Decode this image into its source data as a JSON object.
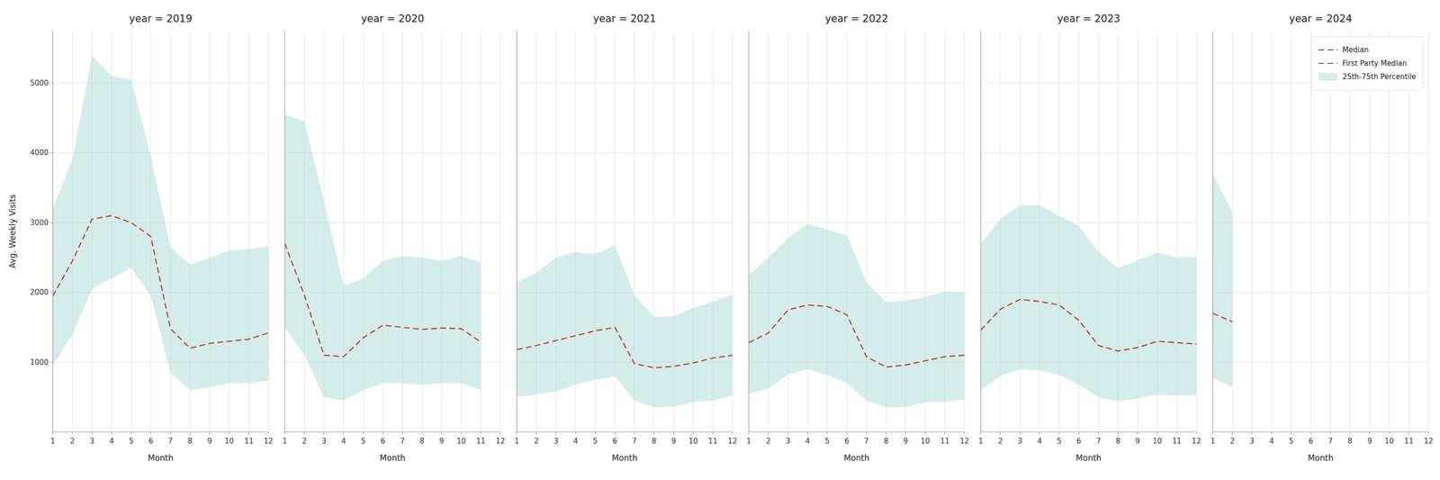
{
  "chart_data": [
    {
      "type": "line",
      "title": "year = 2019",
      "xlabel": "Month",
      "ylabel": "Avg. Weekly Visits",
      "x": [
        1,
        2,
        3,
        4,
        5,
        6,
        7,
        8,
        9,
        10,
        11,
        12
      ],
      "xlim": [
        1,
        12
      ],
      "xticks": [
        1,
        2,
        3,
        4,
        5,
        6,
        7,
        8,
        9,
        10,
        11,
        12
      ],
      "ylim": [
        0,
        5750
      ],
      "yticks": [
        1000,
        2000,
        3000,
        4000,
        5000
      ],
      "grid": true,
      "series": [
        {
          "name": "Median",
          "type": "line",
          "color": "#cc2222",
          "line_style": "dashed",
          "values": [
            1950,
            2450,
            3050,
            3100,
            3000,
            2800,
            1480,
            1200,
            1270,
            1300,
            1330,
            1420
          ]
        },
        {
          "name": "25th-75th Percentile",
          "type": "band",
          "color": "#aedfd8",
          "low": [
            950,
            1400,
            2050,
            2200,
            2350,
            1950,
            850,
            600,
            640,
            700,
            700,
            740
          ],
          "high": [
            3200,
            3900,
            5400,
            5100,
            5050,
            3950,
            2650,
            2400,
            2500,
            2600,
            2620,
            2660
          ]
        }
      ]
    },
    {
      "type": "line",
      "title": "year = 2020",
      "xlabel": "Month",
      "x": [
        1,
        2,
        3,
        4,
        5,
        6,
        7,
        8,
        9,
        10,
        11,
        12
      ],
      "xlim": [
        1,
        12
      ],
      "xticks": [
        1,
        2,
        3,
        4,
        5,
        6,
        7,
        8,
        9,
        10,
        11,
        12
      ],
      "ylim": [
        0,
        5750
      ],
      "yticks": [
        1000,
        2000,
        3000,
        4000,
        5000
      ],
      "grid": true,
      "tick_labels": "x",
      "series": [
        {
          "name": "Median",
          "type": "line",
          "color": "#cc2222",
          "line_style": "dashed",
          "values": [
            2700,
            1960,
            1100,
            1080,
            1350,
            1530,
            1500,
            1470,
            1490,
            1480,
            1290,
            null
          ]
        },
        {
          "name": "25th-75th Percentile",
          "type": "band",
          "color": "#aedfd8",
          "low": [
            1500,
            1100,
            500,
            450,
            600,
            700,
            700,
            680,
            700,
            700,
            600,
            null
          ],
          "high": [
            4550,
            4450,
            3300,
            2100,
            2200,
            2450,
            2520,
            2500,
            2450,
            2520,
            2430,
            null
          ]
        }
      ]
    },
    {
      "type": "line",
      "title": "year = 2021",
      "xlabel": "Month",
      "x": [
        1,
        2,
        3,
        4,
        5,
        6,
        7,
        8,
        9,
        10,
        11,
        12
      ],
      "xlim": [
        1,
        12
      ],
      "xticks": [
        1,
        2,
        3,
        4,
        5,
        6,
        7,
        8,
        9,
        10,
        11,
        12
      ],
      "ylim": [
        0,
        5750
      ],
      "yticks": [
        1000,
        2000,
        3000,
        4000,
        5000
      ],
      "grid": true,
      "tick_labels": "x",
      "series": [
        {
          "name": "Median",
          "type": "line",
          "color": "#cc2222",
          "line_style": "dashed",
          "values": [
            1180,
            1240,
            1310,
            1380,
            1450,
            1500,
            980,
            920,
            940,
            990,
            1060,
            1100
          ]
        },
        {
          "name": "25th-75th Percentile",
          "type": "band",
          "color": "#aedfd8",
          "low": [
            500,
            540,
            580,
            680,
            750,
            800,
            450,
            350,
            360,
            430,
            450,
            520
          ],
          "high": [
            2150,
            2280,
            2500,
            2580,
            2550,
            2680,
            1960,
            1650,
            1660,
            1780,
            1870,
            1970
          ]
        }
      ]
    },
    {
      "type": "line",
      "title": "year = 2022",
      "xlabel": "Month",
      "x": [
        1,
        2,
        3,
        4,
        5,
        6,
        7,
        8,
        9,
        10,
        11,
        12
      ],
      "xlim": [
        1,
        12
      ],
      "xticks": [
        1,
        2,
        3,
        4,
        5,
        6,
        7,
        8,
        9,
        10,
        11,
        12
      ],
      "ylim": [
        0,
        5750
      ],
      "yticks": [
        1000,
        2000,
        3000,
        4000,
        5000
      ],
      "grid": true,
      "tick_labels": "x",
      "series": [
        {
          "name": "Median",
          "type": "line",
          "color": "#cc2222",
          "line_style": "dashed",
          "values": [
            1280,
            1420,
            1750,
            1820,
            1800,
            1680,
            1080,
            930,
            960,
            1020,
            1080,
            1100
          ]
        },
        {
          "name": "25th-75th Percentile",
          "type": "band",
          "color": "#aedfd8",
          "low": [
            550,
            620,
            820,
            900,
            820,
            700,
            450,
            350,
            360,
            430,
            430,
            470
          ],
          "high": [
            2250,
            2500,
            2780,
            2980,
            2900,
            2820,
            2150,
            1860,
            1880,
            1940,
            2010,
            2000
          ]
        }
      ]
    },
    {
      "type": "line",
      "title": "year = 2023",
      "xlabel": "Month",
      "x": [
        1,
        2,
        3,
        4,
        5,
        6,
        7,
        8,
        9,
        10,
        11,
        12
      ],
      "xlim": [
        1,
        12
      ],
      "xticks": [
        1,
        2,
        3,
        4,
        5,
        6,
        7,
        8,
        9,
        10,
        11,
        12
      ],
      "ylim": [
        0,
        5750
      ],
      "yticks": [
        1000,
        2000,
        3000,
        4000,
        5000
      ],
      "grid": true,
      "tick_labels": "x",
      "series": [
        {
          "name": "Median",
          "type": "line",
          "color": "#cc2222",
          "line_style": "dashed",
          "values": [
            1460,
            1760,
            1900,
            1870,
            1820,
            1600,
            1240,
            1160,
            1210,
            1300,
            1280,
            1260
          ]
        },
        {
          "name": "25th-75th Percentile",
          "type": "band",
          "color": "#aedfd8",
          "low": [
            600,
            800,
            900,
            880,
            820,
            680,
            500,
            440,
            480,
            540,
            520,
            530
          ],
          "high": [
            2700,
            3050,
            3250,
            3250,
            3100,
            2950,
            2580,
            2350,
            2460,
            2570,
            2500,
            2510
          ]
        }
      ]
    },
    {
      "type": "line",
      "title": "year = 2024",
      "xlabel": "Month",
      "x": [
        1,
        2,
        3,
        4,
        5,
        6,
        7,
        8,
        9,
        10,
        11,
        12
      ],
      "xlim": [
        1,
        12
      ],
      "xticks": [
        1,
        2,
        3,
        4,
        5,
        6,
        7,
        8,
        9,
        10,
        11,
        12
      ],
      "ylim": [
        0,
        5750
      ],
      "yticks": [
        1000,
        2000,
        3000,
        4000,
        5000
      ],
      "grid": true,
      "tick_labels": "x",
      "legend": "upper right",
      "series": [
        {
          "name": "Median",
          "type": "line",
          "color": "#cc2222",
          "line_style": "dashed",
          "values": [
            1700,
            1580,
            null,
            null,
            null,
            null,
            null,
            null,
            null,
            null,
            null,
            null
          ]
        },
        {
          "name": "First Party Median",
          "type": "line",
          "color": "#4466bb",
          "line_style": "dashed",
          "values": [
            null,
            null,
            null,
            null,
            null,
            null,
            null,
            null,
            null,
            null,
            null,
            null
          ]
        },
        {
          "name": "25th-75th Percentile",
          "type": "band",
          "color": "#aedfd8",
          "low": [
            780,
            640,
            null,
            null,
            null,
            null,
            null,
            null,
            null,
            null,
            null,
            null
          ],
          "high": [
            3700,
            3150,
            null,
            null,
            null,
            null,
            null,
            null,
            null,
            null,
            null,
            null
          ]
        }
      ]
    }
  ]
}
